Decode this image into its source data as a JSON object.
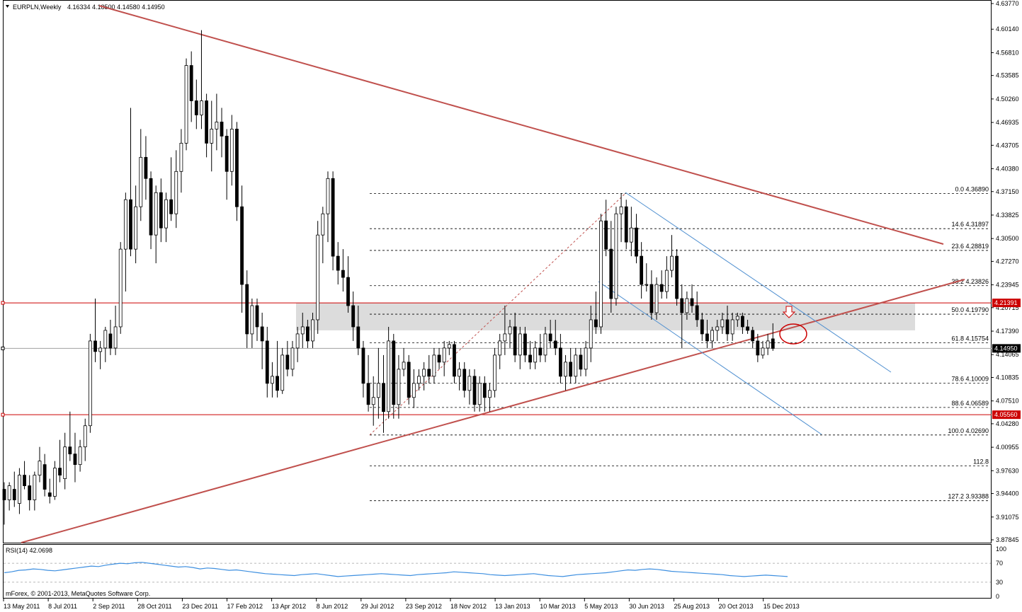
{
  "header": {
    "symbol_timeframe": "EURPLN,Weekly",
    "ohlc": "4.16334 4.18500 4.14580 4.14950",
    "menu_icon": "triangle-down-icon"
  },
  "rsi": {
    "label": "RSI(14) 42.0698",
    "axis_labels": [
      "100",
      "70",
      "30",
      "0"
    ]
  },
  "copyright": "mForex, © 2001-2013, MetaQuotes Software Corp.",
  "x_axis_labels": [
    "13 May 2011",
    "8 Jul 2011",
    "2 Sep 2011",
    "28 Oct 2011",
    "23 Dec 2011",
    "17 Feb 2012",
    "13 Apr 2012",
    "8 Jun 2012",
    "29 Jul 2012",
    "23 Sep 2012",
    "18 Nov 2012",
    "13 Jan 2013",
    "10 Mar 2013",
    "5 May 2013",
    "30 Jun 2013",
    "25 Aug 2013",
    "20 Oct 2013",
    "15 Dec 2013"
  ],
  "price_axis_labels": [
    "4.63770",
    "4.60140",
    "4.56810",
    "4.53585",
    "4.50260",
    "4.46935",
    "4.43705",
    "4.40380",
    "4.37150",
    "4.33825",
    "4.30500",
    "4.27270",
    "4.23945",
    "4.20715",
    "4.17390",
    "4.14065",
    "4.10835",
    "4.07510",
    "4.04280",
    "4.00955",
    "3.97630",
    "3.94400",
    "3.91075",
    "3.87845"
  ],
  "price_markers": [
    {
      "value": "4.21391",
      "color": "#cc0000"
    },
    {
      "value": "4.14950",
      "color": "#000000"
    },
    {
      "value": "4.05560",
      "color": "#cc0000"
    }
  ],
  "fibonacci_levels": [
    {
      "ratio": "0.0",
      "price": "4.36890"
    },
    {
      "ratio": "14.6",
      "price": "4.31897"
    },
    {
      "ratio": "23.6",
      "price": "4.28819"
    },
    {
      "ratio": "38.2",
      "price": "4.23826"
    },
    {
      "ratio": "50.0",
      "price": "4.19790"
    },
    {
      "ratio": "61.8",
      "price": "4.15754"
    },
    {
      "ratio": "78.6",
      "price": "4.10009"
    },
    {
      "ratio": "88.6",
      "price": "4.06589"
    },
    {
      "ratio": "100.0",
      "price": "4.02690"
    },
    {
      "ratio": "112.8",
      "price": ""
    },
    {
      "ratio": "127.2",
      "price": "3.93388"
    }
  ],
  "colors": {
    "trendline": "#c0504d",
    "channel": "#4f8fd0",
    "horizontal_level": "#cc0000",
    "rsi_line": "#3d8fe0",
    "zone_fill": "#dcdcdc",
    "candle_outline": "#000000"
  },
  "chart_data": {
    "type": "candlestick",
    "title": "EURPLN,Weekly",
    "timeframe": "Weekly",
    "ylim": [
      3.87845,
      4.6377
    ],
    "last_close": 4.1495,
    "candles": [
      {
        "o": 3.95,
        "h": 3.96,
        "l": 3.9,
        "c": 3.935
      },
      {
        "o": 3.935,
        "h": 3.96,
        "l": 3.92,
        "c": 3.955
      },
      {
        "o": 3.95,
        "h": 3.975,
        "l": 3.925,
        "c": 3.935
      },
      {
        "o": 3.93,
        "h": 3.98,
        "l": 3.915,
        "c": 3.97
      },
      {
        "o": 3.97,
        "h": 3.99,
        "l": 3.95,
        "c": 3.955
      },
      {
        "o": 3.955,
        "h": 3.97,
        "l": 3.92,
        "c": 3.935
      },
      {
        "o": 3.935,
        "h": 3.975,
        "l": 3.92,
        "c": 3.97
      },
      {
        "o": 3.97,
        "h": 4.01,
        "l": 3.96,
        "c": 3.99
      },
      {
        "o": 3.985,
        "h": 4.0,
        "l": 3.94,
        "c": 3.95
      },
      {
        "o": 3.945,
        "h": 3.965,
        "l": 3.93,
        "c": 3.94
      },
      {
        "o": 3.94,
        "h": 3.99,
        "l": 3.935,
        "c": 3.98
      },
      {
        "o": 3.98,
        "h": 4.02,
        "l": 3.96,
        "c": 3.97
      },
      {
        "o": 3.965,
        "h": 4.03,
        "l": 3.95,
        "c": 4.01
      },
      {
        "o": 4.01,
        "h": 4.06,
        "l": 3.99,
        "c": 4.0
      },
      {
        "o": 4.0,
        "h": 4.03,
        "l": 3.96,
        "c": 3.985
      },
      {
        "o": 3.985,
        "h": 4.02,
        "l": 3.975,
        "c": 4.01
      },
      {
        "o": 4.01,
        "h": 4.05,
        "l": 3.99,
        "c": 4.04
      },
      {
        "o": 4.04,
        "h": 4.17,
        "l": 4.03,
        "c": 4.16
      },
      {
        "o": 4.16,
        "h": 4.22,
        "l": 4.13,
        "c": 4.145
      },
      {
        "o": 4.145,
        "h": 4.16,
        "l": 4.12,
        "c": 4.15
      },
      {
        "o": 4.15,
        "h": 4.18,
        "l": 4.13,
        "c": 4.175
      },
      {
        "o": 4.17,
        "h": 4.19,
        "l": 4.14,
        "c": 4.15
      },
      {
        "o": 4.15,
        "h": 4.21,
        "l": 4.14,
        "c": 4.18
      },
      {
        "o": 4.18,
        "h": 4.3,
        "l": 4.17,
        "c": 4.29
      },
      {
        "o": 4.29,
        "h": 4.37,
        "l": 4.23,
        "c": 4.36
      },
      {
        "o": 4.36,
        "h": 4.49,
        "l": 4.28,
        "c": 4.29
      },
      {
        "o": 4.29,
        "h": 4.38,
        "l": 4.27,
        "c": 4.35
      },
      {
        "o": 4.35,
        "h": 4.46,
        "l": 4.33,
        "c": 4.42
      },
      {
        "o": 4.42,
        "h": 4.45,
        "l": 4.36,
        "c": 4.39
      },
      {
        "o": 4.39,
        "h": 4.4,
        "l": 4.29,
        "c": 4.31
      },
      {
        "o": 4.31,
        "h": 4.38,
        "l": 4.27,
        "c": 4.37
      },
      {
        "o": 4.37,
        "h": 4.39,
        "l": 4.3,
        "c": 4.32
      },
      {
        "o": 4.32,
        "h": 4.37,
        "l": 4.3,
        "c": 4.36
      },
      {
        "o": 4.36,
        "h": 4.42,
        "l": 4.33,
        "c": 4.34
      },
      {
        "o": 4.34,
        "h": 4.43,
        "l": 4.32,
        "c": 4.4
      },
      {
        "o": 4.4,
        "h": 4.46,
        "l": 4.37,
        "c": 4.44
      },
      {
        "o": 4.44,
        "h": 4.56,
        "l": 4.43,
        "c": 4.55
      },
      {
        "o": 4.55,
        "h": 4.57,
        "l": 4.47,
        "c": 4.5
      },
      {
        "o": 4.5,
        "h": 4.53,
        "l": 4.46,
        "c": 4.48
      },
      {
        "o": 4.48,
        "h": 4.6,
        "l": 4.46,
        "c": 4.5
      },
      {
        "o": 4.5,
        "h": 4.51,
        "l": 4.42,
        "c": 4.44
      },
      {
        "o": 4.44,
        "h": 4.5,
        "l": 4.4,
        "c": 4.46
      },
      {
        "o": 4.46,
        "h": 4.51,
        "l": 4.43,
        "c": 4.47
      },
      {
        "o": 4.47,
        "h": 4.49,
        "l": 4.42,
        "c": 4.45
      },
      {
        "o": 4.45,
        "h": 4.46,
        "l": 4.36,
        "c": 4.4
      },
      {
        "o": 4.4,
        "h": 4.48,
        "l": 4.38,
        "c": 4.46
      },
      {
        "o": 4.46,
        "h": 4.47,
        "l": 4.33,
        "c": 4.35
      },
      {
        "o": 4.35,
        "h": 4.38,
        "l": 4.2,
        "c": 4.24
      },
      {
        "o": 4.24,
        "h": 4.26,
        "l": 4.15,
        "c": 4.17
      },
      {
        "o": 4.17,
        "h": 4.22,
        "l": 4.15,
        "c": 4.21
      },
      {
        "o": 4.21,
        "h": 4.22,
        "l": 4.16,
        "c": 4.18
      },
      {
        "o": 4.18,
        "h": 4.2,
        "l": 4.12,
        "c": 4.16
      },
      {
        "o": 4.16,
        "h": 4.18,
        "l": 4.08,
        "c": 4.1
      },
      {
        "o": 4.1,
        "h": 4.13,
        "l": 4.08,
        "c": 4.11
      },
      {
        "o": 4.11,
        "h": 4.16,
        "l": 4.08,
        "c": 4.09
      },
      {
        "o": 4.09,
        "h": 4.15,
        "l": 4.085,
        "c": 4.14
      },
      {
        "o": 4.14,
        "h": 4.16,
        "l": 4.11,
        "c": 4.12
      },
      {
        "o": 4.12,
        "h": 4.16,
        "l": 4.11,
        "c": 4.15
      },
      {
        "o": 4.15,
        "h": 4.18,
        "l": 4.13,
        "c": 4.17
      },
      {
        "o": 4.17,
        "h": 4.2,
        "l": 4.15,
        "c": 4.18
      },
      {
        "o": 4.18,
        "h": 4.19,
        "l": 4.15,
        "c": 4.16
      },
      {
        "o": 4.16,
        "h": 4.2,
        "l": 4.15,
        "c": 4.19
      },
      {
        "o": 4.19,
        "h": 4.33,
        "l": 4.17,
        "c": 4.31
      },
      {
        "o": 4.31,
        "h": 4.35,
        "l": 4.27,
        "c": 4.34
      },
      {
        "o": 4.34,
        "h": 4.4,
        "l": 4.3,
        "c": 4.39
      },
      {
        "o": 4.39,
        "h": 4.4,
        "l": 4.26,
        "c": 4.28
      },
      {
        "o": 4.28,
        "h": 4.3,
        "l": 4.24,
        "c": 4.26
      },
      {
        "o": 4.26,
        "h": 4.29,
        "l": 4.23,
        "c": 4.25
      },
      {
        "o": 4.25,
        "h": 4.28,
        "l": 4.2,
        "c": 4.21
      },
      {
        "o": 4.21,
        "h": 4.23,
        "l": 4.16,
        "c": 4.18
      },
      {
        "o": 4.18,
        "h": 4.21,
        "l": 4.14,
        "c": 4.15
      },
      {
        "o": 4.15,
        "h": 4.16,
        "l": 4.08,
        "c": 4.1
      },
      {
        "o": 4.1,
        "h": 4.14,
        "l": 4.06,
        "c": 4.07
      },
      {
        "o": 4.07,
        "h": 4.11,
        "l": 4.04,
        "c": 4.08
      },
      {
        "o": 4.08,
        "h": 4.15,
        "l": 4.05,
        "c": 4.1
      },
      {
        "o": 4.1,
        "h": 4.14,
        "l": 4.03,
        "c": 4.06
      },
      {
        "o": 4.06,
        "h": 4.18,
        "l": 4.05,
        "c": 4.16
      },
      {
        "o": 4.16,
        "h": 4.17,
        "l": 4.05,
        "c": 4.07
      },
      {
        "o": 4.07,
        "h": 4.14,
        "l": 4.05,
        "c": 4.12
      },
      {
        "o": 4.12,
        "h": 4.15,
        "l": 4.11,
        "c": 4.13
      },
      {
        "o": 4.13,
        "h": 4.14,
        "l": 4.07,
        "c": 4.08
      },
      {
        "o": 4.08,
        "h": 4.12,
        "l": 4.065,
        "c": 4.1
      },
      {
        "o": 4.1,
        "h": 4.12,
        "l": 4.09,
        "c": 4.11
      },
      {
        "o": 4.11,
        "h": 4.13,
        "l": 4.09,
        "c": 4.12
      },
      {
        "o": 4.12,
        "h": 4.14,
        "l": 4.1,
        "c": 4.11
      },
      {
        "o": 4.11,
        "h": 4.15,
        "l": 4.1,
        "c": 4.14
      },
      {
        "o": 4.14,
        "h": 4.15,
        "l": 4.12,
        "c": 4.13
      },
      {
        "o": 4.13,
        "h": 4.16,
        "l": 4.11,
        "c": 4.15
      },
      {
        "o": 4.15,
        "h": 4.16,
        "l": 4.14,
        "c": 4.155
      },
      {
        "o": 4.155,
        "h": 4.16,
        "l": 4.1,
        "c": 4.11
      },
      {
        "o": 4.11,
        "h": 4.13,
        "l": 4.09,
        "c": 4.12
      },
      {
        "o": 4.12,
        "h": 4.13,
        "l": 4.08,
        "c": 4.09
      },
      {
        "o": 4.09,
        "h": 4.12,
        "l": 4.07,
        "c": 4.11
      },
      {
        "o": 4.11,
        "h": 4.12,
        "l": 4.06,
        "c": 4.07
      },
      {
        "o": 4.07,
        "h": 4.11,
        "l": 4.06,
        "c": 4.1
      },
      {
        "o": 4.1,
        "h": 4.11,
        "l": 4.06,
        "c": 4.08
      },
      {
        "o": 4.08,
        "h": 4.1,
        "l": 4.06,
        "c": 4.09
      },
      {
        "o": 4.09,
        "h": 4.15,
        "l": 4.08,
        "c": 4.14
      },
      {
        "o": 4.14,
        "h": 4.17,
        "l": 4.12,
        "c": 4.16
      },
      {
        "o": 4.16,
        "h": 4.21,
        "l": 4.14,
        "c": 4.17
      },
      {
        "o": 4.17,
        "h": 4.19,
        "l": 4.15,
        "c": 4.18
      },
      {
        "o": 4.18,
        "h": 4.2,
        "l": 4.13,
        "c": 4.14
      },
      {
        "o": 4.14,
        "h": 4.18,
        "l": 4.12,
        "c": 4.17
      },
      {
        "o": 4.17,
        "h": 4.18,
        "l": 4.13,
        "c": 4.14
      },
      {
        "o": 4.14,
        "h": 4.16,
        "l": 4.12,
        "c": 4.13
      },
      {
        "o": 4.13,
        "h": 4.16,
        "l": 4.12,
        "c": 4.15
      },
      {
        "o": 4.15,
        "h": 4.17,
        "l": 4.13,
        "c": 4.14
      },
      {
        "o": 4.14,
        "h": 4.18,
        "l": 4.13,
        "c": 4.17
      },
      {
        "o": 4.17,
        "h": 4.19,
        "l": 4.15,
        "c": 4.16
      },
      {
        "o": 4.16,
        "h": 4.19,
        "l": 4.14,
        "c": 4.15
      },
      {
        "o": 4.15,
        "h": 4.17,
        "l": 4.1,
        "c": 4.11
      },
      {
        "o": 4.11,
        "h": 4.14,
        "l": 4.09,
        "c": 4.13
      },
      {
        "o": 4.13,
        "h": 4.15,
        "l": 4.1,
        "c": 4.11
      },
      {
        "o": 4.11,
        "h": 4.15,
        "l": 4.1,
        "c": 4.14
      },
      {
        "o": 4.14,
        "h": 4.15,
        "l": 4.11,
        "c": 4.12
      },
      {
        "o": 4.12,
        "h": 4.16,
        "l": 4.11,
        "c": 4.15
      },
      {
        "o": 4.15,
        "h": 4.21,
        "l": 4.13,
        "c": 4.19
      },
      {
        "o": 4.19,
        "h": 4.23,
        "l": 4.17,
        "c": 4.18
      },
      {
        "o": 4.18,
        "h": 4.34,
        "l": 4.17,
        "c": 4.33
      },
      {
        "o": 4.33,
        "h": 4.36,
        "l": 4.28,
        "c": 4.29
      },
      {
        "o": 4.29,
        "h": 4.33,
        "l": 4.2,
        "c": 4.22
      },
      {
        "o": 4.22,
        "h": 4.35,
        "l": 4.21,
        "c": 4.34
      },
      {
        "o": 4.34,
        "h": 4.369,
        "l": 4.3,
        "c": 4.35
      },
      {
        "o": 4.35,
        "h": 4.36,
        "l": 4.29,
        "c": 4.3
      },
      {
        "o": 4.3,
        "h": 4.35,
        "l": 4.28,
        "c": 4.32
      },
      {
        "o": 4.32,
        "h": 4.34,
        "l": 4.27,
        "c": 4.28
      },
      {
        "o": 4.28,
        "h": 4.3,
        "l": 4.22,
        "c": 4.24
      },
      {
        "o": 4.24,
        "h": 4.27,
        "l": 4.23,
        "c": 4.24
      },
      {
        "o": 4.24,
        "h": 4.26,
        "l": 4.19,
        "c": 4.2
      },
      {
        "o": 4.2,
        "h": 4.25,
        "l": 4.19,
        "c": 4.24
      },
      {
        "o": 4.24,
        "h": 4.26,
        "l": 4.22,
        "c": 4.23
      },
      {
        "o": 4.23,
        "h": 4.28,
        "l": 4.22,
        "c": 4.26
      },
      {
        "o": 4.26,
        "h": 4.31,
        "l": 4.25,
        "c": 4.28
      },
      {
        "o": 4.28,
        "h": 4.29,
        "l": 4.21,
        "c": 4.22
      },
      {
        "o": 4.22,
        "h": 4.24,
        "l": 4.15,
        "c": 4.2
      },
      {
        "o": 4.2,
        "h": 4.23,
        "l": 4.19,
        "c": 4.22
      },
      {
        "o": 4.22,
        "h": 4.24,
        "l": 4.2,
        "c": 4.21
      },
      {
        "o": 4.21,
        "h": 4.23,
        "l": 4.18,
        "c": 4.19
      },
      {
        "o": 4.19,
        "h": 4.2,
        "l": 4.16,
        "c": 4.17
      },
      {
        "o": 4.17,
        "h": 4.19,
        "l": 4.15,
        "c": 4.16
      },
      {
        "o": 4.16,
        "h": 4.18,
        "l": 4.15,
        "c": 4.175
      },
      {
        "o": 4.175,
        "h": 4.19,
        "l": 4.16,
        "c": 4.18
      },
      {
        "o": 4.18,
        "h": 4.2,
        "l": 4.17,
        "c": 4.19
      },
      {
        "o": 4.19,
        "h": 4.21,
        "l": 4.16,
        "c": 4.17
      },
      {
        "o": 4.17,
        "h": 4.2,
        "l": 4.16,
        "c": 4.19
      },
      {
        "o": 4.19,
        "h": 4.2,
        "l": 4.18,
        "c": 4.195
      },
      {
        "o": 4.195,
        "h": 4.2,
        "l": 4.17,
        "c": 4.18
      },
      {
        "o": 4.18,
        "h": 4.19,
        "l": 4.17,
        "c": 4.175
      },
      {
        "o": 4.175,
        "h": 4.18,
        "l": 4.15,
        "c": 4.16
      },
      {
        "o": 4.16,
        "h": 4.17,
        "l": 4.13,
        "c": 4.14
      },
      {
        "o": 4.14,
        "h": 4.16,
        "l": 4.135,
        "c": 4.15
      },
      {
        "o": 4.15,
        "h": 4.17,
        "l": 4.14,
        "c": 4.16
      },
      {
        "o": 4.163,
        "h": 4.185,
        "l": 4.146,
        "c": 4.1495
      }
    ],
    "rsi_values": [
      50,
      52,
      55,
      56,
      58,
      57,
      55,
      54,
      56,
      58,
      60,
      62,
      64,
      63,
      66,
      68,
      70,
      69,
      71,
      72,
      70,
      68,
      66,
      64,
      62,
      63,
      61,
      58,
      60,
      59,
      57,
      55,
      56,
      54,
      52,
      50,
      48,
      47,
      46,
      45,
      44,
      46,
      47,
      48,
      46,
      44,
      42,
      43,
      44,
      45,
      46,
      47,
      48,
      47,
      46,
      45,
      44,
      46,
      47,
      48,
      49,
      50,
      52,
      51,
      50,
      49,
      48,
      46,
      45,
      44,
      45,
      46,
      47,
      48,
      46,
      44,
      43,
      42,
      44,
      46,
      47,
      48,
      49,
      50,
      52,
      54,
      56,
      55,
      57,
      58,
      57,
      55,
      53,
      52,
      51,
      50,
      49,
      48,
      47,
      46,
      44,
      43,
      42,
      43,
      44,
      45,
      44,
      43,
      42
    ]
  }
}
